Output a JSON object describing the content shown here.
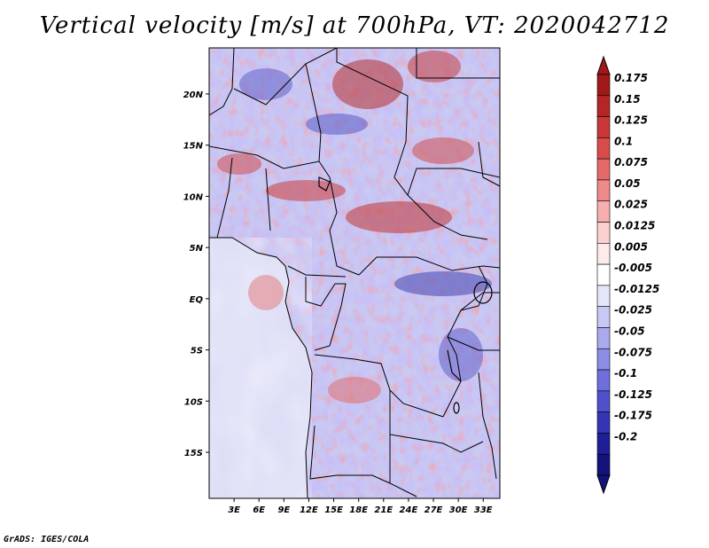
{
  "title": "Vertical velocity [m/s] at 700hPa, VT: 2020042712",
  "footer": "GrADS: IGES/COLA",
  "map": {
    "lat_labels": [
      "20N",
      "15N",
      "10N",
      "5N",
      "EQ",
      "5S",
      "10S",
      "15S"
    ],
    "lat_values": [
      20,
      15,
      10,
      5,
      0,
      -5,
      -10,
      -15
    ],
    "lon_labels": [
      "3E",
      "6E",
      "9E",
      "12E",
      "15E",
      "18E",
      "21E",
      "24E",
      "27E",
      "30E",
      "33E"
    ],
    "lon_values": [
      3,
      6,
      9,
      12,
      15,
      18,
      21,
      24,
      27,
      30,
      33
    ],
    "lon_range": [
      0,
      35
    ],
    "lat_range": [
      -19.5,
      24.5
    ]
  },
  "colorbar": {
    "labels": [
      "0.175",
      "0.15",
      "0.125",
      "0.1",
      "0.075",
      "0.05",
      "0.025",
      "0.0125",
      "0.005",
      "-0.005",
      "-0.0125",
      "-0.025",
      "-0.05",
      "-0.075",
      "-0.1",
      "-0.125",
      "-0.175",
      "-0.2"
    ],
    "colors": [
      "#a01818",
      "#b42626",
      "#c83838",
      "#d84c4c",
      "#e46a6a",
      "#ee8a8a",
      "#f6aeae",
      "#fbd0d0",
      "#fdeaea",
      "#ffffff",
      "#e6e6fb",
      "#c8c8f4",
      "#aaaaee",
      "#8c8ce6",
      "#6e6edc",
      "#5050cc",
      "#3434b4",
      "#1e1e96",
      "#12127a"
    ]
  }
}
